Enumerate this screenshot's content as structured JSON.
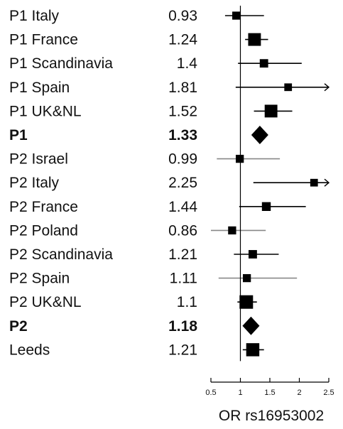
{
  "chart_data": {
    "type": "forest",
    "xlabel": "OR rs16953002",
    "xlim": [
      0.5,
      2.5
    ],
    "xticks": [
      "0.5",
      "1",
      "1.5",
      "2",
      "2.5"
    ],
    "reference_line": 1,
    "rows": [
      {
        "label": "P1 Italy",
        "or_text": "0.93",
        "or": 0.93,
        "ci_low": 0.74,
        "ci_high": 1.4,
        "summary": false,
        "weight": 0.3,
        "ci_color": "#000000",
        "arrow": false
      },
      {
        "label": "P1 France",
        "or_text": "1.24",
        "or": 1.24,
        "ci_low": 1.08,
        "ci_high": 1.47,
        "summary": false,
        "weight": 0.9,
        "ci_color": "#000000",
        "arrow": false
      },
      {
        "label": "P1 Scandinavia",
        "or_text": "1.4",
        "or": 1.4,
        "ci_low": 0.96,
        "ci_high": 2.04,
        "summary": false,
        "weight": 0.35,
        "ci_color": "#000000",
        "arrow": false
      },
      {
        "label": "P1 Spain",
        "or_text": "1.81",
        "or": 1.81,
        "ci_low": 0.92,
        "ci_high": 2.5,
        "summary": false,
        "weight": 0.25,
        "ci_color": "#000000",
        "arrow": true
      },
      {
        "label": "P1 UK&NL",
        "or_text": "1.52",
        "or": 1.52,
        "ci_low": 1.23,
        "ci_high": 1.88,
        "summary": false,
        "weight": 0.9,
        "ci_color": "#000000",
        "arrow": false
      },
      {
        "label": "P1",
        "or_text": "1.33",
        "or": 1.33,
        "ci_low": 1.19,
        "ci_high": 1.48,
        "summary": true
      },
      {
        "label": "P2 Israel",
        "or_text": "0.99",
        "or": 0.99,
        "ci_low": 0.6,
        "ci_high": 1.67,
        "summary": false,
        "weight": 0.3,
        "ci_color": "#888888",
        "arrow": false
      },
      {
        "label": "P2 Italy",
        "or_text": "2.25",
        "or": 2.25,
        "ci_low": 1.22,
        "ci_high": 2.5,
        "summary": false,
        "weight": 0.25,
        "ci_color": "#000000",
        "arrow": true
      },
      {
        "label": "P2 France",
        "or_text": "1.44",
        "or": 1.44,
        "ci_low": 0.98,
        "ci_high": 2.11,
        "summary": false,
        "weight": 0.4,
        "ci_color": "#000000",
        "arrow": false
      },
      {
        "label": "P2 Poland",
        "or_text": "0.86",
        "or": 0.86,
        "ci_low": 0.5,
        "ci_high": 1.43,
        "summary": false,
        "weight": 0.3,
        "ci_color": "#888888",
        "arrow": false
      },
      {
        "label": "P2 Scandinavia",
        "or_text": "1.21",
        "or": 1.21,
        "ci_low": 0.89,
        "ci_high": 1.65,
        "summary": false,
        "weight": 0.35,
        "ci_color": "#000000",
        "arrow": false
      },
      {
        "label": "P2 Spain",
        "or_text": "1.11",
        "or": 1.11,
        "ci_low": 0.63,
        "ci_high": 1.96,
        "summary": false,
        "weight": 0.3,
        "ci_color": "#888888",
        "arrow": false
      },
      {
        "label": "P2 UK&NL",
        "or_text": "1.1",
        "or": 1.1,
        "ci_low": 0.95,
        "ci_high": 1.28,
        "summary": false,
        "weight": 1.0,
        "ci_color": "#000000",
        "arrow": false
      },
      {
        "label": "P2",
        "or_text": "1.18",
        "or": 1.18,
        "ci_low": 1.08,
        "ci_high": 1.29,
        "summary": true
      },
      {
        "label": "Leeds",
        "or_text": "1.21",
        "or": 1.21,
        "ci_low": 1.04,
        "ci_high": 1.4,
        "summary": false,
        "weight": 0.95,
        "ci_color": "#000000",
        "arrow": false
      }
    ]
  }
}
